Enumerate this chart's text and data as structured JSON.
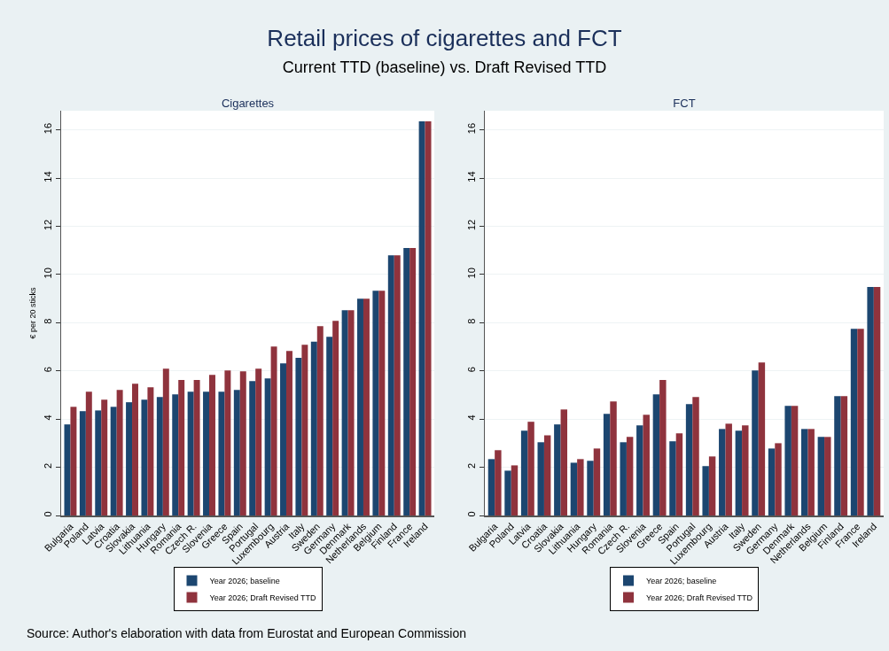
{
  "chart_data": [
    {
      "type": "bar",
      "title": "Cigarettes",
      "ylabel": "€ per 20 sticks",
      "annotations": [
        "Retail prices of cigarettes and FCT",
        "Current TTD (baseline) vs. Draft Revised TTD",
        "Source: Author's elaboration with data from Eurostat and European Commission"
      ],
      "categories": [
        "Bulgaria",
        "Poland",
        "Latvia",
        "Croatia",
        "Slovakia",
        "Lithuania",
        "Hungary",
        "Romania",
        "Czech R.",
        "Slovenia",
        "Greece",
        "Spain",
        "Portugal",
        "Luxembourg",
        "Austria",
        "Italy",
        "Sweden",
        "Germany",
        "Denmark",
        "Netherlands",
        "Belgium",
        "Finland",
        "France",
        "Ireland"
      ],
      "series": [
        {
          "name": "Year 2026; baseline",
          "color": "#1c4670",
          "values": [
            3.78,
            4.33,
            4.36,
            4.51,
            4.7,
            4.81,
            4.92,
            5.03,
            5.14,
            5.14,
            5.14,
            5.21,
            5.58,
            5.69,
            6.31,
            6.54,
            7.21,
            7.42,
            8.52,
            9.0,
            9.33,
            10.8,
            11.1,
            16.36
          ]
        },
        {
          "name": "Year 2026; Draft Revised TTD",
          "color": "#8f333d",
          "values": [
            4.51,
            5.14,
            4.81,
            5.21,
            5.47,
            5.32,
            6.09,
            5.62,
            5.62,
            5.84,
            6.02,
            5.98,
            6.09,
            7.01,
            6.83,
            7.09,
            7.86,
            8.08,
            8.52,
            9.0,
            9.33,
            10.8,
            11.1,
            16.36
          ]
        }
      ],
      "ylim": [
        0,
        16.8
      ],
      "yticks": [
        0,
        2,
        4,
        6,
        8,
        10,
        12,
        14,
        16
      ],
      "grid": "y",
      "legend": "bottom"
    },
    {
      "type": "bar",
      "title": "FCT",
      "categories": [
        "Bulgaria",
        "Poland",
        "Latvia",
        "Croatia",
        "Slovakia",
        "Lithuania",
        "Hungary",
        "Romania",
        "Czech R.",
        "Slovenia",
        "Greece",
        "Spain",
        "Portugal",
        "Luxembourg",
        "Austria",
        "Italy",
        "Sweden",
        "Germany",
        "Denmark",
        "Netherlands",
        "Belgium",
        "Finland",
        "France",
        "Ireland"
      ],
      "series": [
        {
          "name": "Year 2026; baseline",
          "color": "#1c4670",
          "values": [
            2.34,
            1.86,
            3.52,
            3.04,
            3.78,
            2.19,
            2.27,
            4.22,
            3.04,
            3.74,
            5.03,
            3.08,
            4.62,
            2.05,
            3.59,
            3.52,
            6.02,
            2.78,
            4.55,
            3.59,
            3.26,
            4.95,
            7.75,
            9.48
          ]
        },
        {
          "name": "Year 2026; Draft Revised TTD",
          "color": "#8f333d",
          "values": [
            2.71,
            2.08,
            3.89,
            3.33,
            4.4,
            2.34,
            2.78,
            4.73,
            3.26,
            4.18,
            5.62,
            3.41,
            4.92,
            2.45,
            3.81,
            3.74,
            6.35,
            3.0,
            4.55,
            3.59,
            3.26,
            4.95,
            7.75,
            9.48
          ]
        }
      ],
      "ylim": [
        0,
        16.8
      ],
      "yticks": [
        0,
        2,
        4,
        6,
        8,
        10,
        12,
        14,
        16
      ],
      "grid": "y",
      "legend": "bottom"
    }
  ]
}
